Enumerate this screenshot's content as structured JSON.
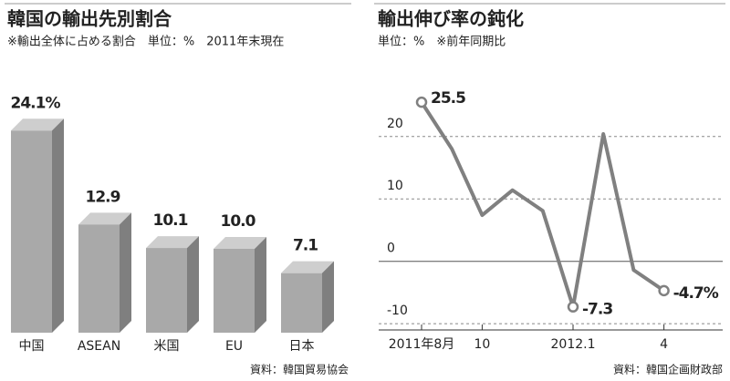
{
  "chart_data": [
    {
      "type": "bar",
      "title": "韓国の輸出先別割合",
      "subtitle": "※輸出全体に占める割合　単位：%　2011年末現在",
      "categories": [
        "中国",
        "ASEAN",
        "米国",
        "EU",
        "日本"
      ],
      "values": [
        24.1,
        12.9,
        10.1,
        10.0,
        7.1
      ],
      "value_labels": [
        "24.1%",
        "12.9",
        "10.1",
        "10.0",
        "7.1"
      ],
      "color": "#a9a9a9",
      "source": "資料：韓国貿易協会"
    },
    {
      "type": "line",
      "title": "輸出伸び率の鈍化",
      "subtitle": "単位：%　※前年同期比",
      "categories": [
        "2011年8月",
        null,
        "10",
        null,
        null,
        "2012.1",
        null,
        null,
        "4"
      ],
      "values": [
        25.5,
        18,
        7.4,
        11.4,
        8.1,
        -7.3,
        20.4,
        -1.4,
        -4.7
      ],
      "value_labels": [
        "25.5",
        null,
        null,
        null,
        null,
        "-7.3",
        null,
        null,
        "-4.7%"
      ],
      "color": "#808080",
      "ylim": [
        -11,
        28
      ],
      "yticks": [
        -10,
        0,
        10,
        20
      ],
      "grid": true,
      "source": "資料：韓国企画財政部"
    }
  ]
}
